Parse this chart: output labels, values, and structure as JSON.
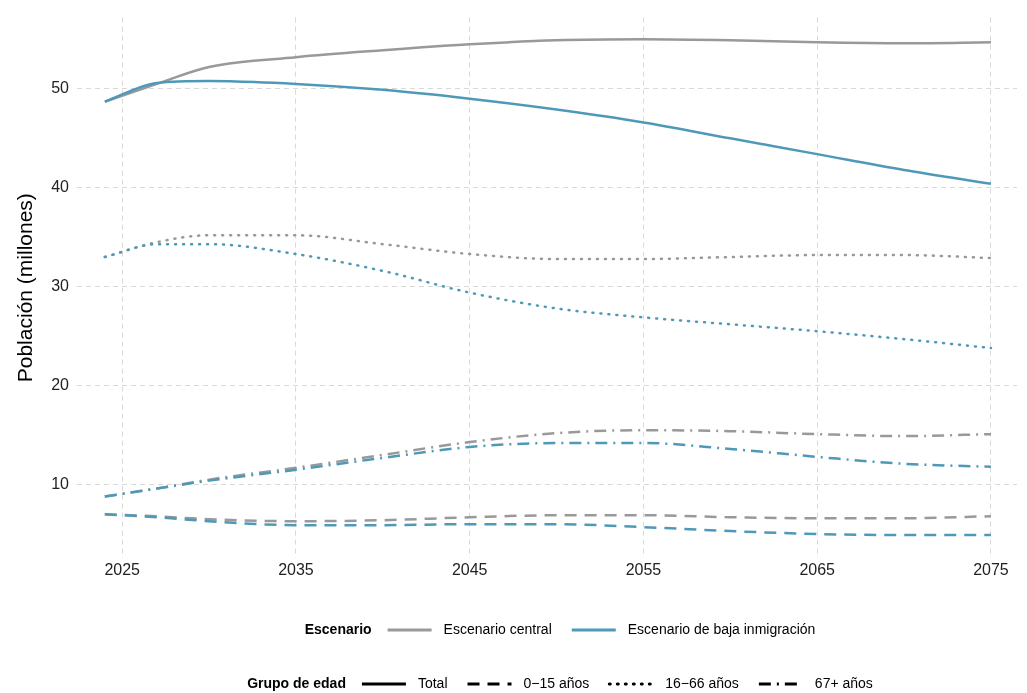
{
  "chart_data": {
    "type": "line",
    "ylabel": "Población (millones)",
    "x": [
      2024,
      2027,
      2030,
      2035,
      2040,
      2045,
      2050,
      2055,
      2060,
      2065,
      2070,
      2075
    ],
    "xlim": [
      2022.4,
      2076.5
    ],
    "xticks": [
      2025,
      2035,
      2045,
      2055,
      2065,
      2075
    ],
    "ylim": [
      2.6,
      57.2
    ],
    "yticks": [
      10,
      20,
      30,
      40,
      50
    ],
    "grid": true,
    "legend": "bottom",
    "marker": "none",
    "legend_title": [
      "Escenario",
      "Grupo de edad"
    ],
    "series": [
      {
        "name": "Escenario central",
        "color": "#999999",
        "line_style": "solid",
        "values": [
          48.7,
          50.5,
          52.2,
          53.2,
          53.9,
          54.5,
          54.9,
          55.0,
          54.9,
          54.7,
          54.6,
          54.7
        ]
      },
      {
        "name": "Escenario de baja inmigración",
        "color": "#4f99b8",
        "line_style": "solid",
        "values": [
          48.7,
          50.6,
          50.8,
          50.5,
          49.9,
          49.0,
          47.9,
          46.6,
          45.0,
          43.4,
          41.8,
          40.4
        ]
      },
      {
        "color": "#999999",
        "line_style": "dotted",
        "values": [
          33.0,
          34.5,
          35.2,
          35.2,
          34.3,
          33.3,
          32.8,
          32.8,
          33.0,
          33.2,
          33.2,
          32.9
        ]
      },
      {
        "color": "#4f99b8",
        "line_style": "dotted",
        "values": [
          33.0,
          34.3,
          34.3,
          33.3,
          31.6,
          29.4,
          27.8,
          26.9,
          26.2,
          25.5,
          24.7,
          23.8
        ]
      },
      {
        "color": "#999999",
        "line_style": "dashdot",
        "values": [
          8.8,
          9.6,
          10.5,
          11.7,
          13.0,
          14.3,
          15.2,
          15.5,
          15.4,
          15.1,
          14.9,
          15.1
        ]
      },
      {
        "color": "#4f99b8",
        "line_style": "dashdot",
        "values": [
          8.8,
          9.6,
          10.4,
          11.5,
          12.7,
          13.8,
          14.2,
          14.2,
          13.6,
          12.8,
          12.1,
          11.8
        ]
      },
      {
        "color": "#999999",
        "line_style": "dashed",
        "values": [
          7.0,
          6.8,
          6.5,
          6.3,
          6.4,
          6.7,
          6.9,
          6.9,
          6.7,
          6.6,
          6.6,
          6.8
        ]
      },
      {
        "color": "#4f99b8",
        "line_style": "dashed",
        "values": [
          7.0,
          6.7,
          6.3,
          5.9,
          5.9,
          6.0,
          6.0,
          5.7,
          5.3,
          5.0,
          4.9,
          4.9
        ]
      },
      {
        "name": "Total",
        "color": "#000000",
        "line_style": "solid",
        "values": [
          null,
          null,
          null,
          null,
          null,
          null,
          null,
          null,
          null,
          null,
          null,
          null
        ]
      },
      {
        "name": "0−15 años",
        "color": "#000000",
        "line_style": "dashed",
        "values": [
          null,
          null,
          null,
          null,
          null,
          null,
          null,
          null,
          null,
          null,
          null,
          null
        ]
      },
      {
        "name": "16−66 años",
        "color": "#000000",
        "line_style": "dotted",
        "values": [
          null,
          null,
          null,
          null,
          null,
          null,
          null,
          null,
          null,
          null,
          null,
          null
        ]
      },
      {
        "name": "67+ años",
        "color": "#000000",
        "line_style": "dashdot",
        "values": [
          null,
          null,
          null,
          null,
          null,
          null,
          null,
          null,
          null,
          null,
          null,
          null
        ]
      }
    ]
  }
}
